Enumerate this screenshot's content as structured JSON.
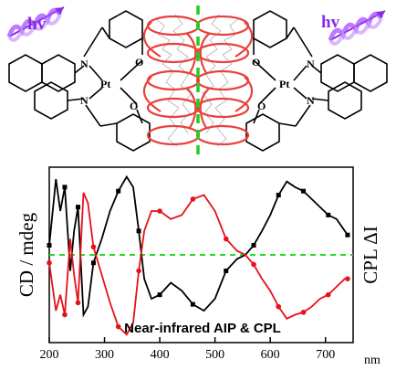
{
  "scheme": {
    "hv_left": "hv",
    "hv_right": "hv",
    "metal_left": "Pt",
    "metal_right": "Pt",
    "atoms": {
      "N": "N",
      "O": "O"
    },
    "colors": {
      "helix": "#a64dff",
      "coil": "#e8413c",
      "mirror": "#22cc22"
    },
    "icons": [
      "light-helix-icon",
      "molecular-coil-icon",
      "mirror-line-icon"
    ]
  },
  "chart_data": {
    "type": "line",
    "xlabel": "nm",
    "ylabel_left": "CD / mdeg",
    "ylabel_right": "CPL ΔI",
    "caption": "Near-infrared AIP & CPL",
    "xlim": [
      200,
      750
    ],
    "x_ticks": [
      200,
      300,
      400,
      500,
      600,
      700
    ],
    "x_tick_labels": [
      "200",
      "300",
      "400",
      "500",
      "600",
      "700"
    ],
    "baseline": 0,
    "ylim": [
      -1.1,
      1.1
    ],
    "colors": {
      "black": "#000000",
      "red": "#e8101a",
      "baseline": "#22dd22"
    },
    "series": [
      {
        "color": "black",
        "marker": "square",
        "x": [
          200,
          212,
          220,
          228,
          238,
          245,
          252,
          262,
          270,
          280,
          295,
          310,
          325,
          340,
          352,
          362,
          372,
          385,
          400,
          420,
          440,
          460,
          480,
          500,
          520,
          540,
          555,
          570,
          585,
          600,
          615,
          630,
          645,
          660,
          675,
          690,
          705,
          720,
          735,
          740
        ],
        "y": [
          0.12,
          0.95,
          0.55,
          0.85,
          -0.2,
          0.3,
          0.6,
          -0.75,
          -0.65,
          -0.1,
          0.2,
          0.55,
          0.8,
          0.98,
          0.85,
          0.3,
          -0.3,
          -0.55,
          -0.5,
          -0.35,
          -0.45,
          -0.62,
          -0.7,
          -0.55,
          -0.2,
          -0.05,
          0.0,
          0.12,
          0.3,
          0.5,
          0.75,
          0.92,
          0.85,
          0.8,
          0.7,
          0.6,
          0.5,
          0.45,
          0.3,
          0.25
        ]
      },
      {
        "color": "red",
        "marker": "circle",
        "x": [
          200,
          212,
          220,
          228,
          238,
          245,
          252,
          262,
          270,
          280,
          295,
          310,
          325,
          340,
          352,
          362,
          372,
          385,
          400,
          420,
          440,
          460,
          480,
          500,
          520,
          540,
          555,
          570,
          585,
          600,
          615,
          630,
          645,
          660,
          675,
          690,
          705,
          720,
          735,
          740
        ],
        "y": [
          -0.1,
          -0.7,
          -0.5,
          -0.75,
          0.2,
          -0.25,
          -0.6,
          0.78,
          0.65,
          0.1,
          -0.25,
          -0.6,
          -0.9,
          -1.0,
          -0.85,
          -0.2,
          0.3,
          0.55,
          0.55,
          0.45,
          0.5,
          0.7,
          0.75,
          0.55,
          0.2,
          0.05,
          0.0,
          -0.12,
          -0.3,
          -0.45,
          -0.65,
          -0.8,
          -0.75,
          -0.72,
          -0.65,
          -0.55,
          -0.5,
          -0.4,
          -0.3,
          -0.3
        ]
      }
    ]
  }
}
